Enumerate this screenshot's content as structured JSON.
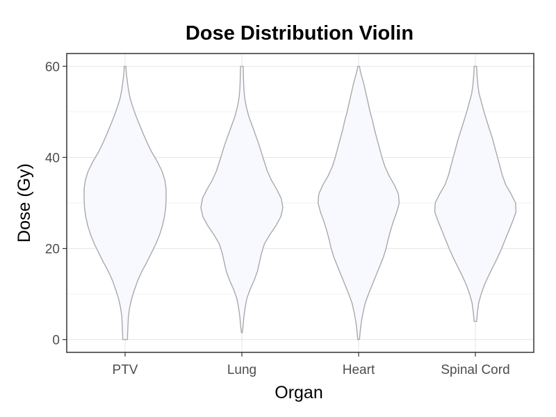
{
  "chart_data": {
    "type": "violin",
    "title": "Dose Distribution Violin",
    "xlabel": "Organ",
    "ylabel": "Dose (Gy)",
    "ylim": [
      -2.8,
      62.8
    ],
    "yticks": [
      0,
      20,
      40,
      60
    ],
    "grid": true,
    "colors": {
      "fill": "#f8f8ff",
      "stroke": "#a9a9a9",
      "grid_major": "#e6e6e6",
      "grid_minor": "#f2f2f2",
      "panel_border": "#333333"
    },
    "categories": [
      "PTV",
      "Lung",
      "Heart",
      "Spinal Cord"
    ],
    "series": [
      {
        "category": "PTV",
        "min": 0,
        "max": 60,
        "profile": [
          [
            0,
            0.06
          ],
          [
            1,
            0.06
          ],
          [
            3,
            0.07
          ],
          [
            5,
            0.08
          ],
          [
            7,
            0.11
          ],
          [
            9,
            0.16
          ],
          [
            11,
            0.23
          ],
          [
            13,
            0.31
          ],
          [
            15,
            0.41
          ],
          [
            17,
            0.53
          ],
          [
            19,
            0.64
          ],
          [
            21,
            0.75
          ],
          [
            23,
            0.84
          ],
          [
            25,
            0.91
          ],
          [
            27,
            0.96
          ],
          [
            29,
            0.99
          ],
          [
            31,
            1.0
          ],
          [
            33,
            1.0
          ],
          [
            35,
            0.97
          ],
          [
            37,
            0.9
          ],
          [
            39,
            0.79
          ],
          [
            41,
            0.66
          ],
          [
            43,
            0.55
          ],
          [
            45,
            0.45
          ],
          [
            47,
            0.36
          ],
          [
            49,
            0.27
          ],
          [
            51,
            0.19
          ],
          [
            53,
            0.12
          ],
          [
            55,
            0.08
          ],
          [
            57,
            0.05
          ],
          [
            58,
            0.035
          ],
          [
            59,
            0.025
          ],
          [
            60,
            0.02
          ]
        ]
      },
      {
        "category": "Lung",
        "min": 1.5,
        "max": 60,
        "profile": [
          [
            1.5,
            0.01
          ],
          [
            3,
            0.03
          ],
          [
            5,
            0.05
          ],
          [
            7,
            0.08
          ],
          [
            9,
            0.12
          ],
          [
            11,
            0.2
          ],
          [
            13,
            0.3
          ],
          [
            15,
            0.38
          ],
          [
            17,
            0.43
          ],
          [
            19,
            0.48
          ],
          [
            21,
            0.55
          ],
          [
            23,
            0.68
          ],
          [
            25,
            0.83
          ],
          [
            27,
            0.95
          ],
          [
            29,
            1.0
          ],
          [
            31,
            0.96
          ],
          [
            33,
            0.85
          ],
          [
            35,
            0.72
          ],
          [
            37,
            0.62
          ],
          [
            39,
            0.55
          ],
          [
            41,
            0.48
          ],
          [
            43,
            0.41
          ],
          [
            45,
            0.33
          ],
          [
            47,
            0.25
          ],
          [
            49,
            0.17
          ],
          [
            51,
            0.11
          ],
          [
            53,
            0.07
          ],
          [
            55,
            0.05
          ],
          [
            57,
            0.04
          ],
          [
            59,
            0.035
          ],
          [
            60,
            0.03
          ]
        ]
      },
      {
        "category": "Heart",
        "min": 0,
        "max": 60,
        "profile": [
          [
            0,
            0.02
          ],
          [
            2,
            0.04
          ],
          [
            4,
            0.07
          ],
          [
            6,
            0.11
          ],
          [
            8,
            0.16
          ],
          [
            10,
            0.24
          ],
          [
            12,
            0.33
          ],
          [
            14,
            0.42
          ],
          [
            16,
            0.51
          ],
          [
            18,
            0.6
          ],
          [
            20,
            0.67
          ],
          [
            22,
            0.72
          ],
          [
            24,
            0.78
          ],
          [
            26,
            0.85
          ],
          [
            28,
            0.93
          ],
          [
            30,
            0.99
          ],
          [
            32,
            0.97
          ],
          [
            34,
            0.87
          ],
          [
            36,
            0.74
          ],
          [
            38,
            0.64
          ],
          [
            40,
            0.57
          ],
          [
            42,
            0.51
          ],
          [
            44,
            0.45
          ],
          [
            46,
            0.39
          ],
          [
            48,
            0.34
          ],
          [
            50,
            0.28
          ],
          [
            52,
            0.23
          ],
          [
            54,
            0.18
          ],
          [
            56,
            0.13
          ],
          [
            58,
            0.07
          ],
          [
            59,
            0.04
          ],
          [
            60,
            0.02
          ]
        ]
      },
      {
        "category": "Spinal Cord",
        "min": 4,
        "max": 60,
        "profile": [
          [
            4,
            0.03
          ],
          [
            6,
            0.05
          ],
          [
            8,
            0.08
          ],
          [
            10,
            0.14
          ],
          [
            12,
            0.22
          ],
          [
            14,
            0.32
          ],
          [
            16,
            0.43
          ],
          [
            18,
            0.54
          ],
          [
            20,
            0.64
          ],
          [
            22,
            0.73
          ],
          [
            24,
            0.82
          ],
          [
            26,
            0.91
          ],
          [
            28,
            0.99
          ],
          [
            30,
            0.98
          ],
          [
            32,
            0.87
          ],
          [
            34,
            0.74
          ],
          [
            36,
            0.66
          ],
          [
            38,
            0.6
          ],
          [
            40,
            0.54
          ],
          [
            42,
            0.48
          ],
          [
            44,
            0.42
          ],
          [
            46,
            0.35
          ],
          [
            48,
            0.28
          ],
          [
            50,
            0.21
          ],
          [
            52,
            0.15
          ],
          [
            54,
            0.09
          ],
          [
            56,
            0.06
          ],
          [
            58,
            0.04
          ],
          [
            60,
            0.03
          ]
        ]
      }
    ]
  }
}
